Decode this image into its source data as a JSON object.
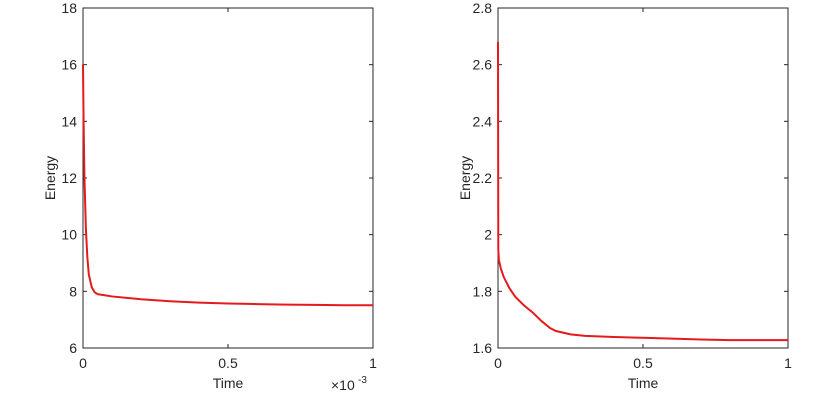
{
  "chart_data": [
    {
      "type": "line",
      "xlabel": "Time",
      "ylabel": "Energy",
      "x_multiplier": "×10",
      "x_multiplier_exp": "-3",
      "x": [
        0,
        0.002,
        0.005,
        0.01,
        0.015,
        0.02,
        0.03,
        0.04,
        0.05,
        0.1,
        0.2,
        0.3,
        0.4,
        0.5,
        0.6,
        0.7,
        0.8,
        0.9,
        1
      ],
      "series": [
        {
          "name": "Energy",
          "color": "#e41a1c",
          "values": [
            16,
            14,
            12,
            10.2,
            9.2,
            8.6,
            8.15,
            7.97,
            7.9,
            7.82,
            7.72,
            7.65,
            7.6,
            7.57,
            7.55,
            7.53,
            7.52,
            7.51,
            7.51
          ]
        }
      ],
      "xlim": [
        0,
        1
      ],
      "xticks": [
        0,
        0.5,
        1
      ],
      "ylim": [
        6,
        18
      ],
      "yticks": [
        6,
        8,
        10,
        12,
        14,
        16,
        18
      ]
    },
    {
      "type": "line",
      "xlabel": "Time",
      "ylabel": "Energy",
      "x": [
        0,
        0.001,
        0.003,
        0.01,
        0.02,
        0.04,
        0.06,
        0.09,
        0.12,
        0.15,
        0.18,
        0.2,
        0.25,
        0.3,
        0.4,
        0.5,
        0.6,
        0.7,
        0.8,
        1
      ],
      "series": [
        {
          "name": "Energy",
          "color": "#e41a1c",
          "values": [
            2.68,
            1.95,
            1.91,
            1.88,
            1.85,
            1.81,
            1.78,
            1.75,
            1.725,
            1.695,
            1.67,
            1.66,
            1.648,
            1.643,
            1.639,
            1.636,
            1.633,
            1.63,
            1.628,
            1.628
          ]
        }
      ],
      "xlim": [
        0,
        1
      ],
      "xticks": [
        0,
        0.5,
        1
      ],
      "ylim": [
        1.6,
        2.8
      ],
      "yticks": [
        1.6,
        1.8,
        2,
        2.2,
        2.4,
        2.6,
        2.8
      ]
    }
  ]
}
